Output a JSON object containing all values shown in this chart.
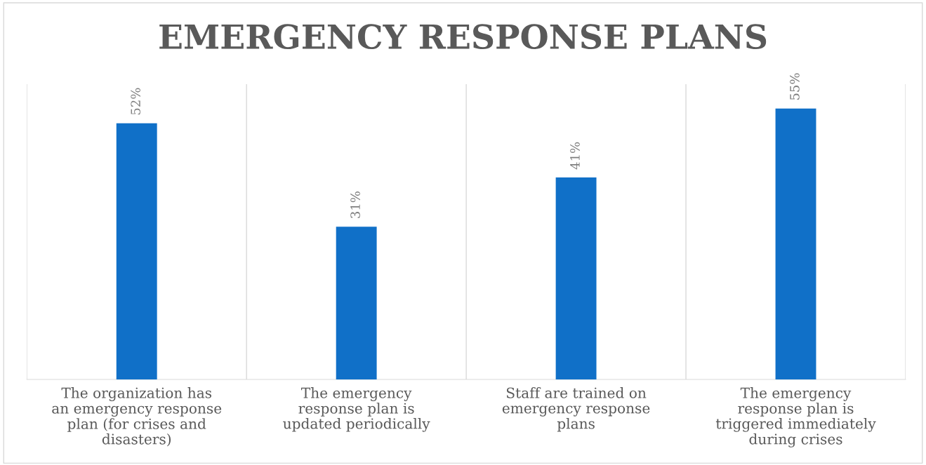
{
  "chart_data": {
    "type": "bar",
    "title": "EMERGENCY RESPONSE PLANS",
    "categories": [
      "The organization has an emergency response plan (for crises and disasters)",
      "The emergency response plan is updated periodically",
      "Staff are trained on emergency response plans",
      "The emergency response plan is triggered immediately during crises"
    ],
    "values": [
      52,
      31,
      41,
      55
    ],
    "value_labels": [
      "52%",
      "31%",
      "41%",
      "55%"
    ],
    "color": "#1070c8",
    "grid": "x"
  }
}
